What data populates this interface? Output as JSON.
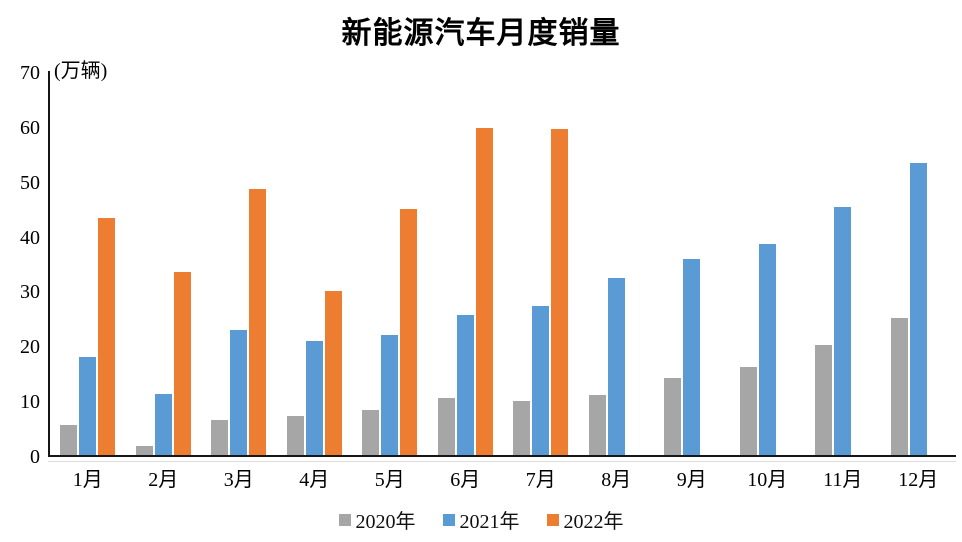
{
  "chart_data": {
    "type": "bar",
    "title": "新能源汽车月度销量",
    "unit": "(万辆)",
    "xlabel": "",
    "ylabel": "(万辆)",
    "categories": [
      "1月",
      "2月",
      "3月",
      "4月",
      "5月",
      "6月",
      "7月",
      "8月",
      "9月",
      "10月",
      "11月",
      "12月"
    ],
    "series": [
      {
        "name": "2020年",
        "color": "#A6A6A6",
        "values": [
          5.4,
          1.6,
          6.4,
          7.2,
          8.2,
          10.4,
          9.8,
          10.9,
          14.0,
          16.0,
          20.0,
          24.9
        ]
      },
      {
        "name": "2021年",
        "color": "#5B9BD5",
        "values": [
          17.9,
          11.1,
          22.7,
          20.7,
          21.8,
          25.6,
          27.2,
          32.2,
          35.7,
          38.4,
          45.2,
          53.2
        ]
      },
      {
        "name": "2022年",
        "color": "#ED7D31",
        "values": [
          43.2,
          33.4,
          48.4,
          29.9,
          44.8,
          59.7,
          59.4,
          null,
          null,
          null,
          null,
          null
        ]
      }
    ],
    "ylim": [
      0,
      70
    ],
    "y_ticks": [
      0,
      10,
      20,
      30,
      40,
      50,
      60,
      70
    ],
    "grid": false,
    "legend_position": "bottom",
    "axis_color": "#161616",
    "background_color": "#ffffff"
  }
}
